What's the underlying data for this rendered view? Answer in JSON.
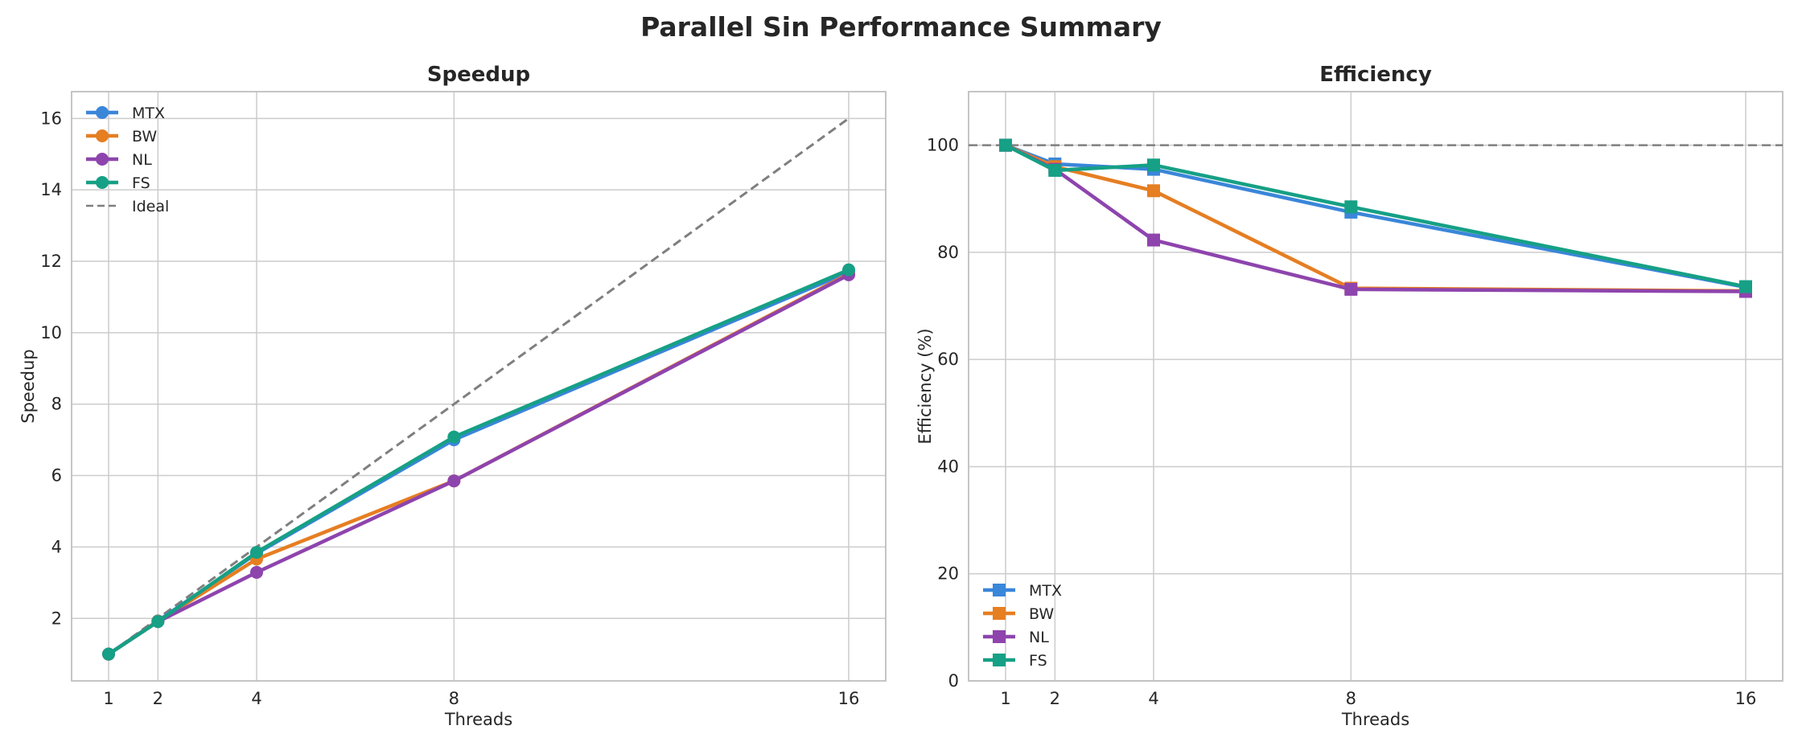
{
  "figure_title": "Parallel Sin Performance Summary",
  "colors": {
    "MTX": "#3a86d9",
    "BW": "#e67e22",
    "NL": "#8e44ad",
    "FS": "#16a085",
    "Ideal": "#7f7f7f",
    "grid": "#cccccc",
    "spine": "#bfbfbf"
  },
  "chart_data": [
    {
      "type": "line",
      "title": "Speedup",
      "xlabel": "Threads",
      "ylabel": "Speedup",
      "x": [
        1,
        2,
        4,
        8,
        16
      ],
      "xticks": [
        1,
        2,
        4,
        8,
        16
      ],
      "yticks": [
        2,
        4,
        6,
        8,
        10,
        12,
        14,
        16
      ],
      "xlim": [
        0.25,
        16.75
      ],
      "ylim": [
        0.25,
        16.75
      ],
      "marker": "circle",
      "legend_position": "upper-left",
      "grid": true,
      "series": [
        {
          "name": "MTX",
          "values": [
            1.0,
            1.93,
            3.82,
            7.0,
            11.7
          ]
        },
        {
          "name": "BW",
          "values": [
            1.0,
            1.92,
            3.66,
            5.85,
            11.65
          ]
        },
        {
          "name": "NL",
          "values": [
            1.0,
            1.91,
            3.29,
            5.85,
            11.62
          ]
        },
        {
          "name": "FS",
          "values": [
            1.0,
            1.91,
            3.85,
            7.08,
            11.76
          ]
        }
      ],
      "reference": {
        "name": "Ideal",
        "x": [
          1,
          16
        ],
        "values": [
          1,
          16
        ],
        "style": "dashed"
      }
    },
    {
      "type": "line",
      "title": "Efficiency",
      "xlabel": "Threads",
      "ylabel": "Efficiency (%)",
      "x": [
        1,
        2,
        4,
        8,
        16
      ],
      "xticks": [
        1,
        2,
        4,
        8,
        16
      ],
      "yticks": [
        0,
        20,
        40,
        60,
        80,
        100
      ],
      "xlim": [
        0.25,
        16.75
      ],
      "ylim": [
        0,
        110
      ],
      "marker": "square",
      "legend_position": "lower-left",
      "grid": true,
      "series": [
        {
          "name": "MTX",
          "values": [
            100,
            96.5,
            95.5,
            87.5,
            73.5
          ]
        },
        {
          "name": "BW",
          "values": [
            100,
            96.0,
            91.5,
            73.3,
            72.8
          ]
        },
        {
          "name": "NL",
          "values": [
            100,
            95.5,
            82.3,
            73.1,
            72.7
          ]
        },
        {
          "name": "FS",
          "values": [
            100,
            95.3,
            96.3,
            88.5,
            73.6
          ]
        }
      ],
      "reference": {
        "name": "",
        "y": 100,
        "style": "dashed"
      }
    }
  ]
}
